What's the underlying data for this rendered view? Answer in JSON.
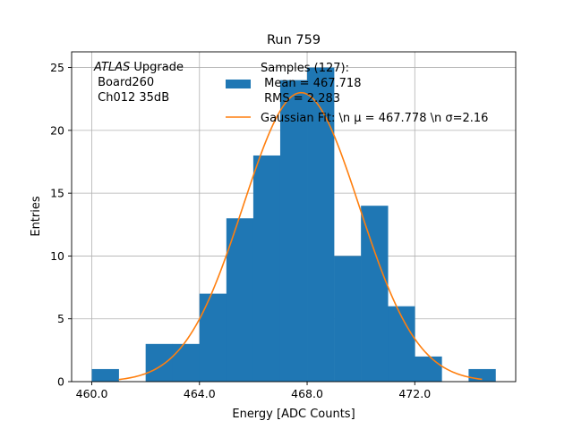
{
  "chart_data": {
    "type": "bar",
    "title": "Run 759",
    "xlabel": "Energy [ADC Counts]",
    "ylabel": "Entries",
    "xlim": [
      459.25,
      475.75
    ],
    "ylim": [
      0,
      26.25
    ],
    "xticks": [
      460.0,
      464.0,
      468.0,
      472.0
    ],
    "xtick_labels": [
      "460.0",
      "464.0",
      "468.0",
      "472.0"
    ],
    "yticks": [
      0,
      5,
      10,
      15,
      20,
      25
    ],
    "ytick_labels": [
      "0",
      "5",
      "10",
      "15",
      "20",
      "25"
    ],
    "grid": true,
    "histogram": {
      "name": "Samples (127):",
      "bin_edges": [
        460,
        461,
        462,
        463,
        464,
        465,
        466,
        467,
        468,
        469,
        470,
        471,
        472,
        473,
        474,
        475
      ],
      "counts": [
        1,
        0,
        3,
        3,
        7,
        13,
        18,
        24,
        25,
        10,
        14,
        6,
        2,
        0,
        1
      ],
      "color": "#1f77b4"
    },
    "fit": {
      "name": "Gaussian Fit",
      "mu": 467.778,
      "sigma": 2.16,
      "amplitude": 23.0,
      "x_range": [
        461.0,
        474.5
      ],
      "color": "#ff7f0e"
    },
    "legend": {
      "placement": "top-center",
      "histogram_lines": [
        "Samples (127):",
        " Mean = 467.718",
        " RMS = 2.283"
      ],
      "fit_label": "Gaussian Fit: \\n μ = 467.778 \\n σ=2.16"
    },
    "annotation": {
      "placement": "top-left",
      "atlas": "ATLAS",
      "upgrade": " Upgrade",
      "line2": " Board260",
      "line3": " Ch012 35dB"
    }
  }
}
